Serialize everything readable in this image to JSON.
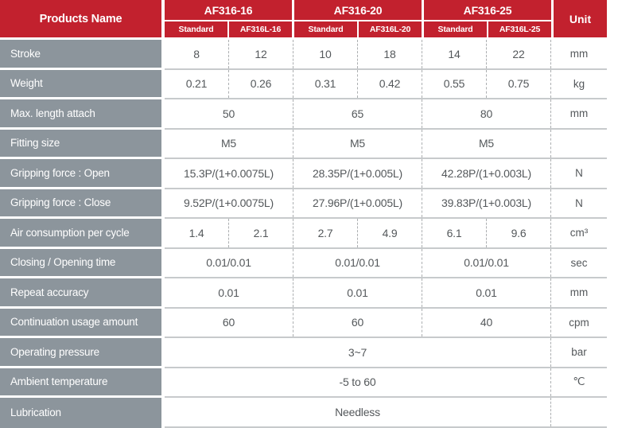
{
  "table": {
    "header": {
      "products_name": "Products Name",
      "unit": "Unit",
      "groups": [
        {
          "name": "AF316-16",
          "sub": [
            "Standard",
            "AF316L-16"
          ]
        },
        {
          "name": "AF316-20",
          "sub": [
            "Standard",
            "AF316L-20"
          ]
        },
        {
          "name": "AF316-25",
          "sub": [
            "Standard",
            "AF316L-25"
          ]
        }
      ]
    },
    "rows": [
      {
        "label": "Stroke",
        "values": [
          "8",
          "12",
          "10",
          "18",
          "14",
          "22"
        ],
        "unit": "mm"
      },
      {
        "label": "Weight",
        "values": [
          "0.21",
          "0.26",
          "0.31",
          "0.42",
          "0.55",
          "0.75"
        ],
        "unit": "kg"
      },
      {
        "label": "Max. length attach",
        "values": [
          "50",
          "65",
          "80"
        ],
        "unit": "mm"
      },
      {
        "label": "Fitting size",
        "values": [
          "M5",
          "M5",
          "M5"
        ],
        "unit": ""
      },
      {
        "label": "Gripping force : Open",
        "values": [
          "15.3P/(1+0.0075L)",
          "28.35P/(1+0.005L)",
          "42.28P/(1+0.003L)"
        ],
        "unit": "N"
      },
      {
        "label": "Gripping force : Close",
        "values": [
          "9.52P/(1+0.0075L)",
          "27.96P/(1+0.005L)",
          "39.83P/(1+0.003L)"
        ],
        "unit": "N"
      },
      {
        "label": "Air consumption per cycle",
        "values": [
          "1.4",
          "2.1",
          "2.7",
          "4.9",
          "6.1",
          "9.6"
        ],
        "unit": "cm³"
      },
      {
        "label": "Closing / Opening time",
        "values": [
          "0.01/0.01",
          "0.01/0.01",
          "0.01/0.01"
        ],
        "unit": "sec"
      },
      {
        "label": "Repeat accuracy",
        "values": [
          "0.01",
          "0.01",
          "0.01"
        ],
        "unit": "mm"
      },
      {
        "label": "Continuation usage amount",
        "values": [
          "60",
          "60",
          "40"
        ],
        "unit": "cpm"
      },
      {
        "label": "Operating pressure",
        "values": [
          "3~7"
        ],
        "unit": "bar"
      },
      {
        "label": "Ambient temperature",
        "values": [
          "-5 to 60"
        ],
        "unit": "℃"
      },
      {
        "label": "Lubrication",
        "values": [
          "Needless"
        ],
        "unit": ""
      }
    ],
    "colors": {
      "header_red": "#C2212E",
      "label_gray": "#8C959C",
      "data_text": "#54585B",
      "row_line": "#C7CACC",
      "dashed_line": "#ACAFB1"
    }
  }
}
